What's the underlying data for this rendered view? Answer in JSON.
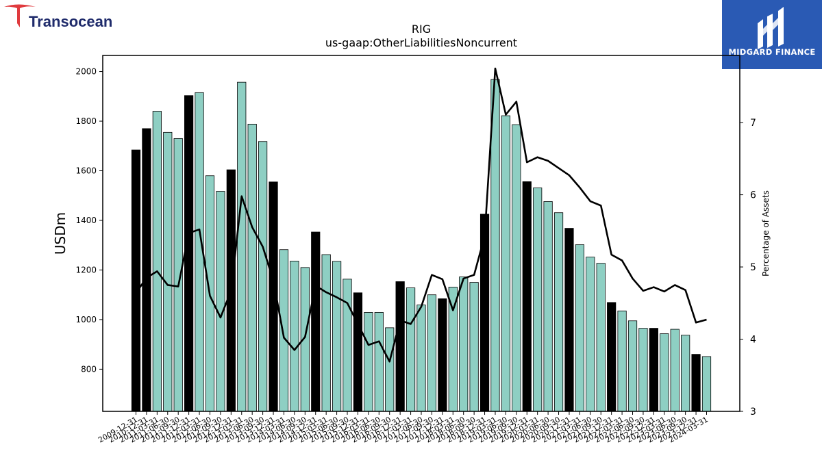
{
  "logos": {
    "left_text": "Transocean",
    "right_text": "MIDGARD FINANCE"
  },
  "colors": {
    "q4_bar": "#000000",
    "bar": "#8ecfc3",
    "bar_edge": "#000000",
    "line": "#000000",
    "brand_red": "#e03a3e",
    "brand_navy": "#1f2b6b",
    "midgard_blue": "#2a5ab4"
  },
  "chart_data": {
    "type": "bar",
    "title": "RIG",
    "subtitle": "us-gaap:OtherLiabilitiesNoncurrent",
    "ylabel": "USDm",
    "ylabel_right": "Percentage of Assets",
    "ylim": [
      630,
      2065
    ],
    "ylim_right": [
      3.0,
      7.93
    ],
    "yticks": [
      800,
      1000,
      1200,
      1400,
      1600,
      1800,
      2000
    ],
    "yticks_right": [
      3,
      4,
      5,
      6,
      7
    ],
    "grid": false,
    "categories": [
      "2009-12-31",
      "2010-12-31",
      "2011-03-31",
      "2011-06-30",
      "2011-09-30",
      "2011-12-31",
      "2012-03-31",
      "2012-06-30",
      "2012-09-30",
      "2012-12-31",
      "2013-03-31",
      "2013-06-30",
      "2013-09-30",
      "2013-12-31",
      "2014-03-31",
      "2014-06-30",
      "2014-09-30",
      "2014-12-31",
      "2015-03-31",
      "2015-06-30",
      "2015-09-30",
      "2015-12-31",
      "2016-03-31",
      "2016-06-30",
      "2016-09-30",
      "2016-12-31",
      "2017-03-31",
      "2017-06-30",
      "2017-09-30",
      "2017-12-31",
      "2018-03-31",
      "2018-06-30",
      "2018-09-30",
      "2018-12-31",
      "2019-03-31",
      "2019-06-30",
      "2019-09-30",
      "2019-12-31",
      "2020-03-31",
      "2020-06-30",
      "2020-09-30",
      "2020-12-31",
      "2021-03-31",
      "2021-06-30",
      "2021-09-30",
      "2021-12-31",
      "2022-03-31",
      "2022-06-30",
      "2022-09-30",
      "2022-12-31",
      "2023-03-31",
      "2023-06-30",
      "2023-09-30",
      "2023-12-31",
      "2024-03-31"
    ],
    "xtick_labels": [
      "2009-12-31",
      "2010-12-31",
      "2011-03-31",
      "2011-06-30",
      "2011-09-30",
      "2011-12-31",
      "2012-03-31",
      "2012-06-30",
      "2012-09-30",
      "2012-12-31",
      "2013-03-31",
      "2013-06-30",
      "2013-09-30",
      "2013-12-31",
      "2014-03-31",
      "2014-06-30",
      "2014-09-30",
      "2014-12-31",
      "2015-03-31",
      "2015-06-30",
      "2015-09-30",
      "2015-12-31",
      "2016-03-31",
      "2016-06-30",
      "2016-09-30",
      "2016-12-31",
      "2017-03-31",
      "2017-06-30",
      "2017-09-30",
      "2017-12-31",
      "2018-03-31",
      "2018-06-30",
      "2018-09-30",
      "2018-12-31",
      "2019-03-31",
      "2019-06-30",
      "2019-09-30",
      "2019-12-31",
      "2020-03-31",
      "2020-06-30",
      "2020-09-30",
      "2020-12-31",
      "2021-03-31",
      "2021-06-30",
      "2021-09-30",
      "2021-12-31",
      "2022-03-31",
      "2022-06-30",
      "2022-09-30",
      "2022-12-31",
      "2023-03-31",
      "2023-06-30",
      "2023-09-30",
      "2023-12-31",
      "2024-03-31"
    ],
    "q4_flags": [
      1,
      1,
      0,
      0,
      0,
      1,
      0,
      0,
      0,
      1,
      0,
      0,
      0,
      1,
      0,
      0,
      0,
      1,
      0,
      0,
      0,
      1,
      0,
      0,
      0,
      1,
      0,
      0,
      0,
      1,
      0,
      0,
      0,
      1,
      0,
      0,
      0,
      1,
      0,
      0,
      0,
      1,
      0,
      0,
      0,
      1,
      0,
      0,
      0,
      1,
      0,
      0,
      0,
      1,
      0
    ],
    "series": [
      {
        "type": "bar",
        "axis": "left",
        "values": [
          1684,
          1770,
          1840,
          1755,
          1730,
          1903,
          1915,
          1580,
          1517,
          1604,
          1957,
          1788,
          1718,
          1555,
          1282,
          1236,
          1210,
          1353,
          1262,
          1235,
          1163,
          1108,
          1029,
          1029,
          967,
          1153,
          1128,
          1059,
          1100,
          1084,
          1131,
          1172,
          1150,
          1425,
          1968,
          1822,
          1786,
          1556,
          1531,
          1476,
          1431,
          1368,
          1302,
          1252,
          1227,
          1069,
          1035,
          995,
          965,
          965,
          943,
          961,
          937,
          860,
          851
        ]
      },
      {
        "type": "line",
        "axis": "right",
        "values": [
          4.64,
          4.85,
          4.94,
          4.75,
          4.73,
          5.47,
          5.52,
          4.6,
          4.3,
          4.67,
          5.98,
          5.55,
          5.28,
          4.81,
          4.02,
          3.85,
          4.03,
          4.74,
          4.65,
          4.58,
          4.5,
          4.21,
          3.92,
          3.97,
          3.69,
          4.26,
          4.21,
          4.45,
          4.89,
          4.83,
          4.4,
          4.84,
          4.89,
          5.43,
          7.75,
          7.11,
          7.29,
          6.45,
          6.52,
          6.47,
          6.37,
          6.27,
          6.1,
          5.91,
          5.85,
          5.17,
          5.09,
          4.84,
          4.67,
          4.72,
          4.66,
          4.75,
          4.68,
          4.23,
          4.27
        ]
      }
    ]
  }
}
